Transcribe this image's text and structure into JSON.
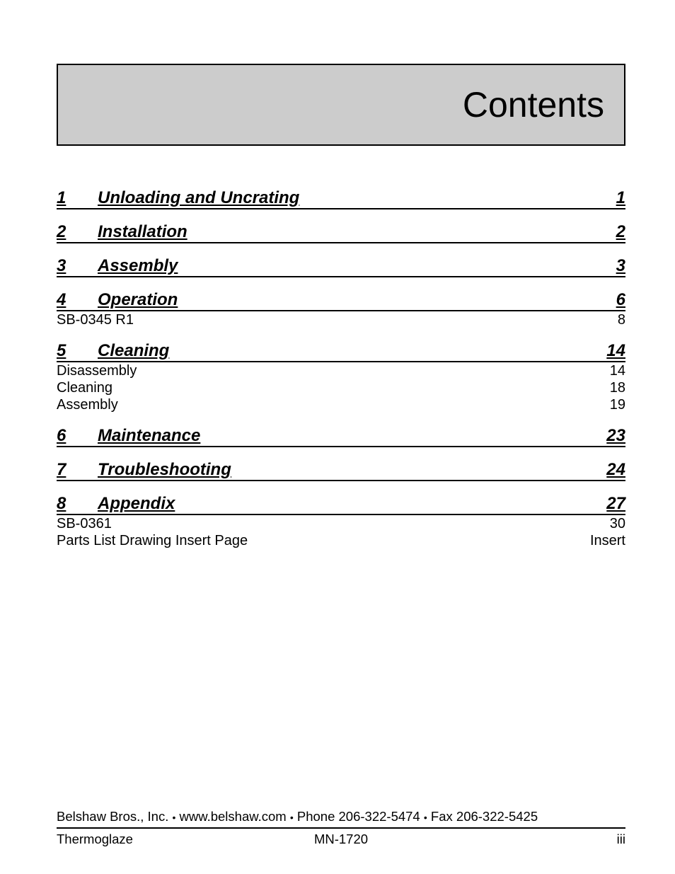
{
  "title": "Contents",
  "chapters": [
    {
      "num": "1",
      "label": "Unloading and Uncrating",
      "page": "1",
      "subs": []
    },
    {
      "num": "2",
      "label": "Installation",
      "page": "2",
      "subs": []
    },
    {
      "num": "3",
      "label": "Assembly",
      "page": "3",
      "subs": []
    },
    {
      "num": "4",
      "label": "Operation",
      "page": "6",
      "subs": [
        {
          "label": "SB-0345 R1",
          "page": "8"
        }
      ]
    },
    {
      "num": "5",
      "label": "Cleaning",
      "page": "14",
      "subs": [
        {
          "label": "Disassembly",
          "page": "14"
        },
        {
          "label": "Cleaning",
          "page": "18"
        },
        {
          "label": "Assembly",
          "page": "19"
        }
      ]
    },
    {
      "num": "6",
      "label": "Maintenance",
      "page": "23",
      "subs": []
    },
    {
      "num": "7",
      "label": "Troubleshooting",
      "page": "24",
      "subs": []
    },
    {
      "num": "8",
      "label": "Appendix",
      "page": "27",
      "subs": [
        {
          "label": "SB-0361",
          "page": "30"
        },
        {
          "label": "Parts List Drawing Insert Page",
          "page": "Insert"
        }
      ]
    }
  ],
  "footer": {
    "company": "Belshaw Bros., Inc.",
    "website": "www.belshaw.com",
    "phone": "Phone 206-322-5474",
    "fax": "Fax 206-322-5425",
    "product": "Thermoglaze",
    "docnum": "MN-1720",
    "pagenum": "iii",
    "bullet": "•"
  }
}
